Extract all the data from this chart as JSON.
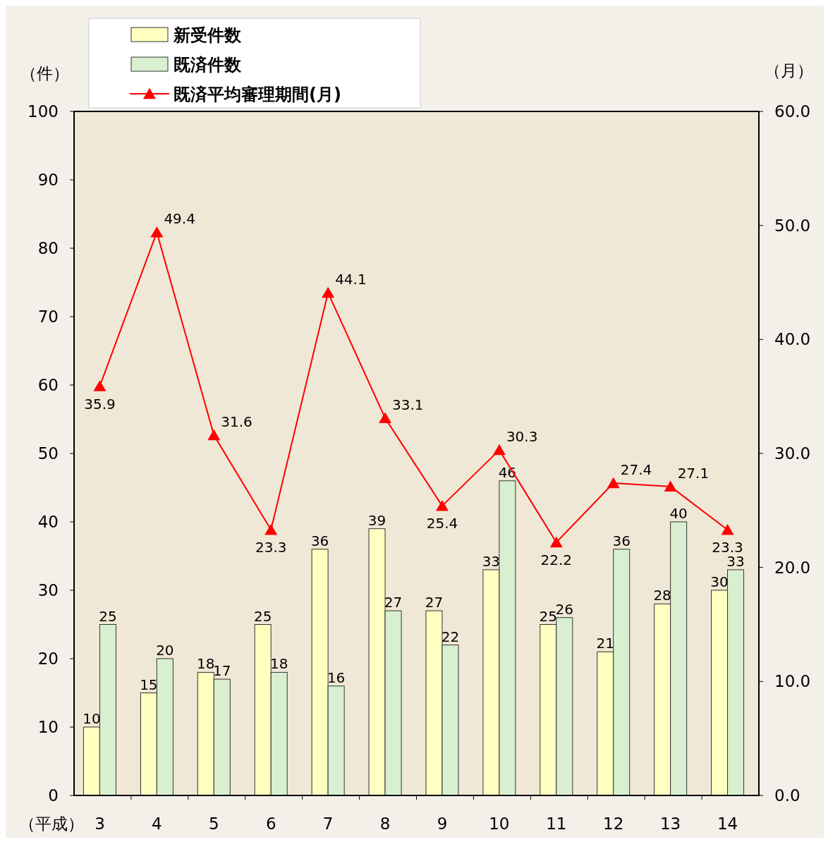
{
  "chart_data": {
    "type": "bar",
    "xlabel": "（平成）",
    "ylabel": "（件）",
    "y2label": "（月）",
    "categories": [
      "3",
      "4",
      "5",
      "6",
      "7",
      "8",
      "9",
      "10",
      "11",
      "12",
      "13",
      "14"
    ],
    "series": [
      {
        "name": "新受件数",
        "color": "#ffffc0",
        "values": [
          10,
          15,
          18,
          25,
          36,
          39,
          27,
          33,
          25,
          21,
          28,
          30
        ]
      },
      {
        "name": "既済件数",
        "color": "#d8f0d0",
        "values": [
          25,
          20,
          17,
          18,
          16,
          27,
          22,
          46,
          26,
          36,
          40,
          33
        ]
      },
      {
        "name": "既済平均審理期間(月)",
        "type": "line",
        "axis": "y2",
        "color": "#ff0000",
        "marker": "triangle",
        "values": [
          35.9,
          49.4,
          31.6,
          23.3,
          44.1,
          33.1,
          25.4,
          30.3,
          22.2,
          27.4,
          27.1,
          23.3
        ]
      }
    ],
    "ylim": [
      0,
      100
    ],
    "yticks": [
      0,
      10,
      20,
      30,
      40,
      50,
      60,
      70,
      80,
      90,
      100
    ],
    "y2lim": [
      0,
      60
    ],
    "y2ticks": [
      {
        "value": 0,
        "label": "0.0"
      },
      {
        "value": 10,
        "label": "10.0"
      },
      {
        "value": 20,
        "label": "20.0"
      },
      {
        "value": 30,
        "label": "30.0"
      },
      {
        "value": 40,
        "label": "40.0"
      },
      {
        "value": 50,
        "label": "50.0"
      },
      {
        "value": 60,
        "label": "60.0"
      }
    ],
    "data_labels": true,
    "legend": "top left",
    "grid": false
  }
}
